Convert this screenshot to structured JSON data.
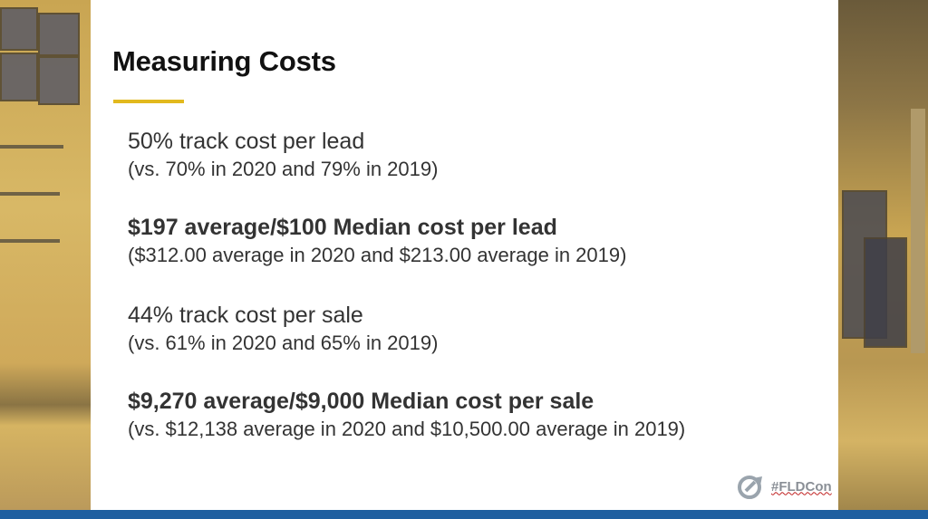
{
  "slide": {
    "title": "Measuring Costs",
    "accent_color": "#e2b91e",
    "items": [
      {
        "main": "50% track cost per lead",
        "detail": "(vs. 70% in 2020 and 79% in 2019)",
        "bold": false
      },
      {
        "main": "$197 average/$100 Median cost per lead",
        "detail": "($312.00 average in 2020 and $213.00 average in 2019)",
        "bold": true
      },
      {
        "main": "44% track cost per sale",
        "detail": "(vs. 61% in 2020 and 65% in 2019)",
        "bold": false
      },
      {
        "main": "$9,270 average/$9,000 Median cost per sale",
        "detail": "(vs. $12,138 average in 2020 and $10,500.00 average in 2019)",
        "bold": true
      }
    ]
  },
  "branding": {
    "hashtag": "#FLDCon",
    "logo_icon": "fldc-logo-icon",
    "footer_color": "#1f5fa0"
  }
}
